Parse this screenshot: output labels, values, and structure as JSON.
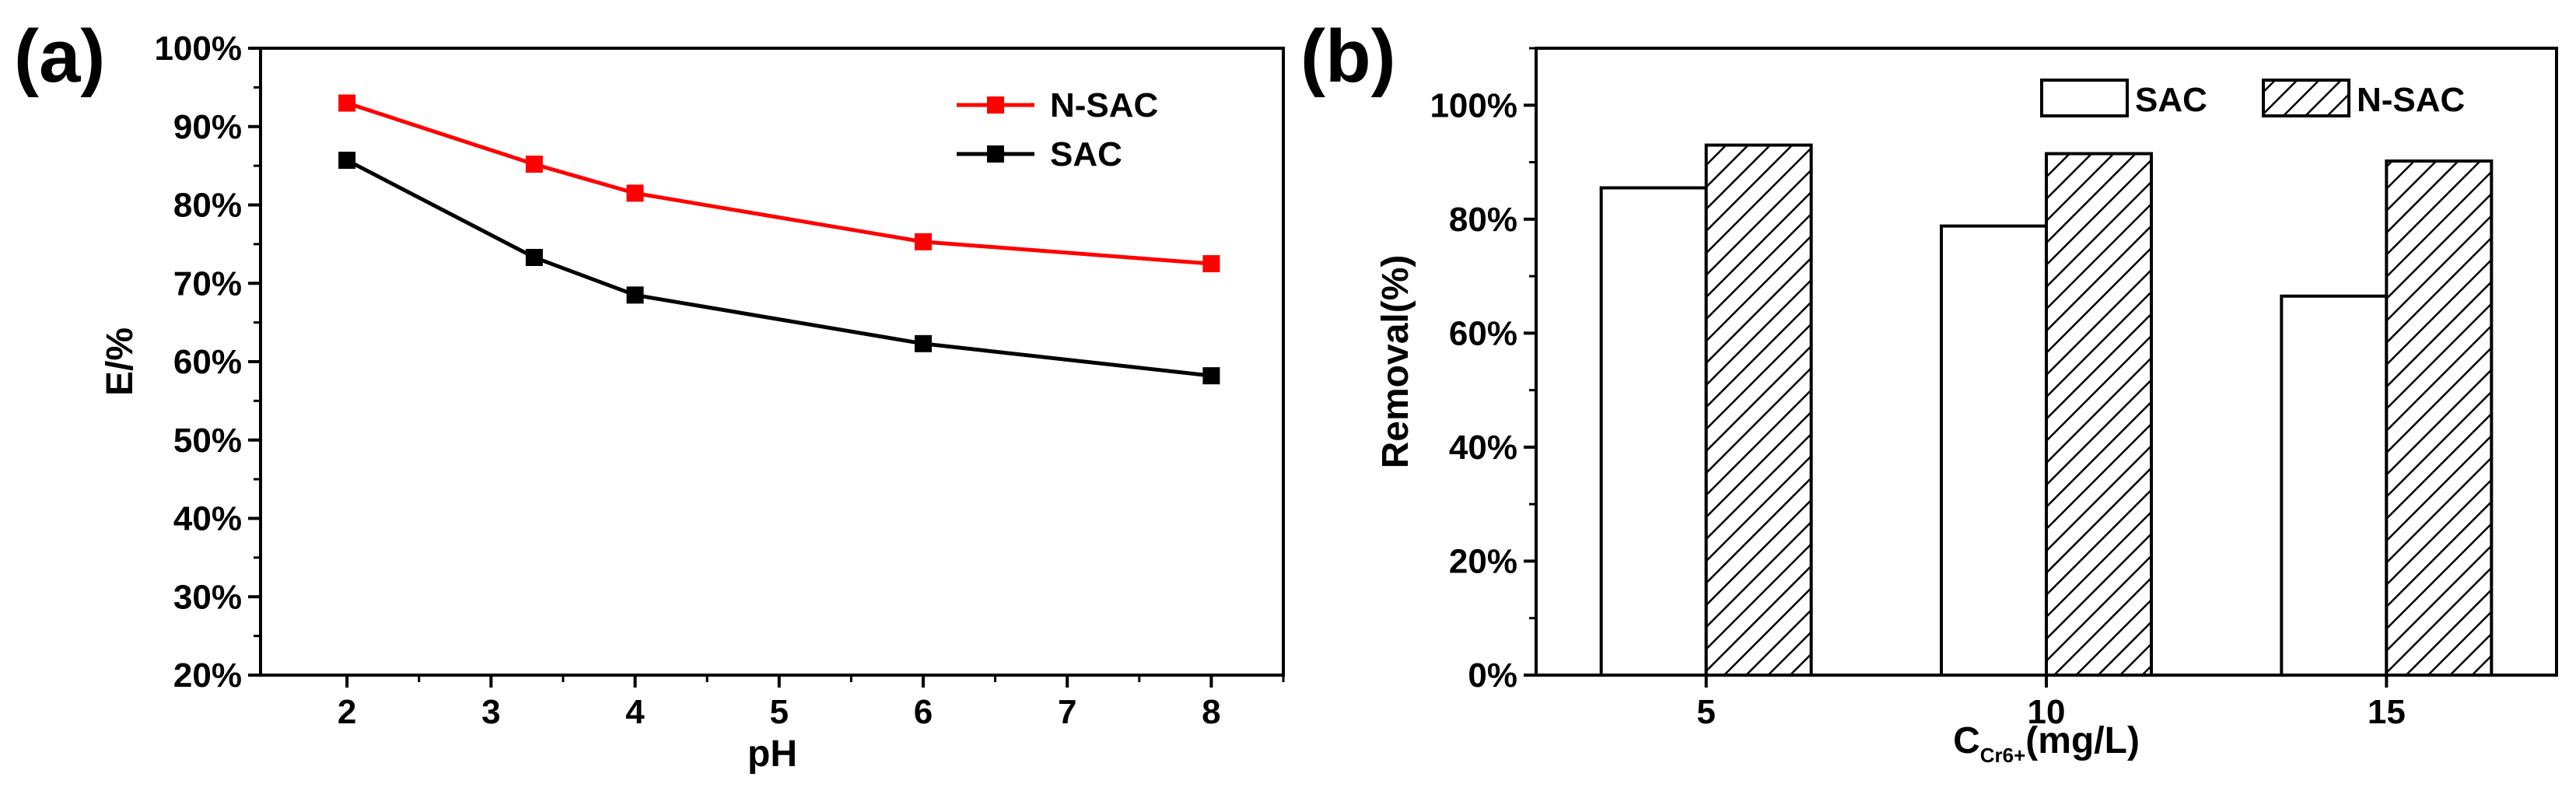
{
  "chart_data": [
    {
      "panel_label": "(a)",
      "type": "line",
      "xlabel": "pH",
      "ylabel": "E/%",
      "xlim": [
        1.4,
        8.5
      ],
      "ylim": [
        20,
        100
      ],
      "xticks": [
        2,
        3,
        4,
        5,
        6,
        7,
        8
      ],
      "xtick_labels": [
        "2",
        "3",
        "4",
        "5",
        "6",
        "7",
        "8"
      ],
      "yticks": [
        20,
        30,
        40,
        50,
        60,
        70,
        80,
        90,
        100
      ],
      "ytick_labels": [
        "20%",
        "30%",
        "40%",
        "50%",
        "60%",
        "70%",
        "80%",
        "90%",
        "100%"
      ],
      "legend_position": "top-right",
      "series": [
        {
          "name": "N-SAC",
          "color": "#ff0000",
          "marker": "square",
          "x": [
            2,
            3.3,
            4,
            6,
            8
          ],
          "values": [
            93,
            85.2,
            81.5,
            75.3,
            72.5
          ]
        },
        {
          "name": "SAC",
          "color": "#000000",
          "marker": "square",
          "x": [
            2,
            3.3,
            4,
            6,
            8
          ],
          "values": [
            85.7,
            73.3,
            68.5,
            62.3,
            58.2
          ]
        }
      ]
    },
    {
      "panel_label": "(b)",
      "type": "bar",
      "xlabel_main": "C",
      "xlabel_sub": "Cr6+",
      "xlabel_rest": "(mg/L)",
      "ylabel": "Removal(%)",
      "ylim": [
        0,
        110
      ],
      "categories": [
        "5",
        "10",
        "15"
      ],
      "yticks": [
        0,
        20,
        40,
        60,
        80,
        100
      ],
      "ytick_labels": [
        "0%",
        "20%",
        "40%",
        "60%",
        "80%",
        "100%"
      ],
      "legend_position": "top-right",
      "series": [
        {
          "name": "SAC",
          "fill": "plain",
          "values": [
            85.5,
            78.8,
            66.5
          ]
        },
        {
          "name": "N-SAC",
          "fill": "hatched",
          "values": [
            93,
            91.5,
            90.2
          ]
        }
      ]
    }
  ]
}
